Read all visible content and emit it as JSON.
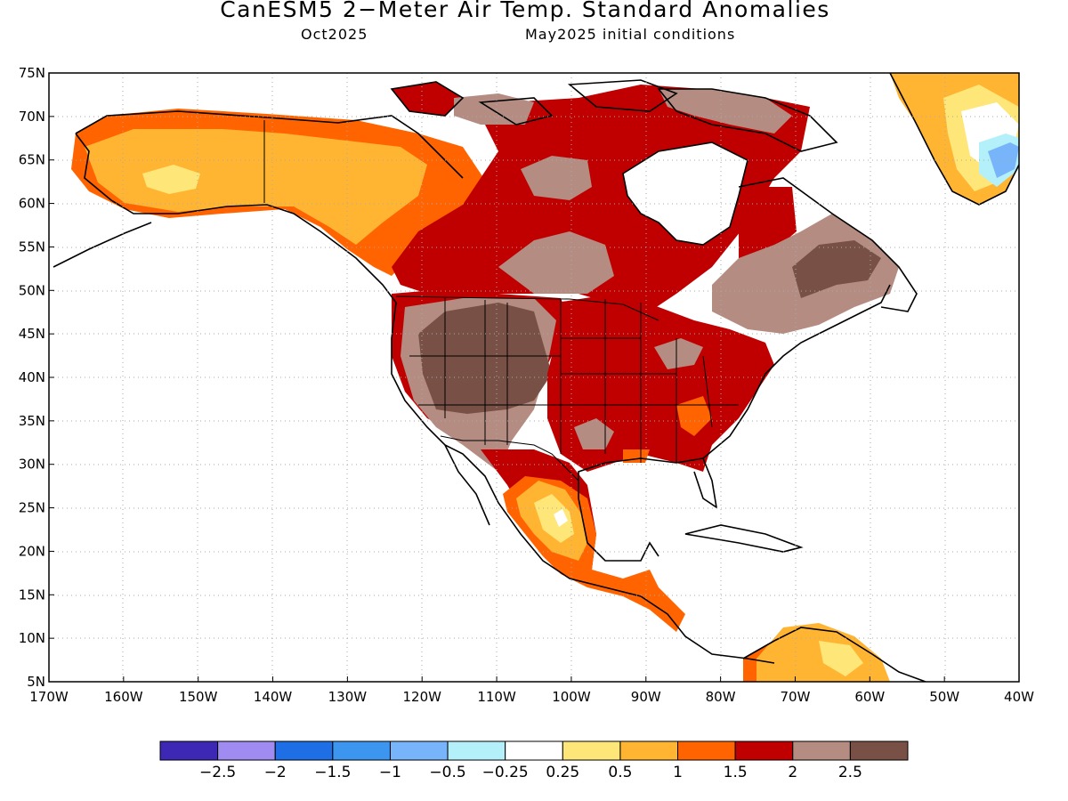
{
  "title": "CanESM5 2−Meter Air Temp. Standard Anomalies",
  "subtitle_left": "Oct2025",
  "subtitle_right": "May2025 initial conditions",
  "map": {
    "lat_range": [
      5,
      75
    ],
    "lon_range": [
      -170,
      -40
    ],
    "lat_ticks": [
      "75N",
      "70N",
      "65N",
      "60N",
      "55N",
      "50N",
      "45N",
      "40N",
      "35N",
      "30N",
      "25N",
      "20N",
      "15N",
      "10N",
      "5N"
    ],
    "lon_ticks": [
      "170W",
      "160W",
      "150W",
      "140W",
      "130W",
      "120W",
      "110W",
      "100W",
      "90W",
      "80W",
      "70W",
      "60W",
      "50W",
      "40W"
    ],
    "gridlines": "dotted"
  },
  "colorbar": {
    "colors": [
      "#3c28b4",
      "#a08cf0",
      "#1e6ee6",
      "#3c96f0",
      "#78b4fa",
      "#b4f0fa",
      "#ffffff",
      "#ffe678",
      "#ffb432",
      "#ff6400",
      "#c00000",
      "#b48c82",
      "#785046"
    ],
    "labels": [
      "−2.5",
      "−2",
      "−1.5",
      "−1",
      "−0.5",
      "−0.25",
      "0.25",
      "0.5",
      "1",
      "1.5",
      "2",
      "2.5"
    ]
  },
  "anomaly_regions": [
    {
      "name": "alaska-yukon",
      "level": "0.5-1"
    },
    {
      "name": "canada-north",
      "level": "1.5-2"
    },
    {
      "name": "us-west-interior",
      "level": ">2.5"
    },
    {
      "name": "us-central-east",
      "level": "1.5-2"
    },
    {
      "name": "quebec-labrador",
      "level": "2-2.5"
    },
    {
      "name": "mexico-west",
      "level": "0.25-0.5"
    },
    {
      "name": "greenland-south",
      "level": "-0.5--0.25"
    }
  ]
}
